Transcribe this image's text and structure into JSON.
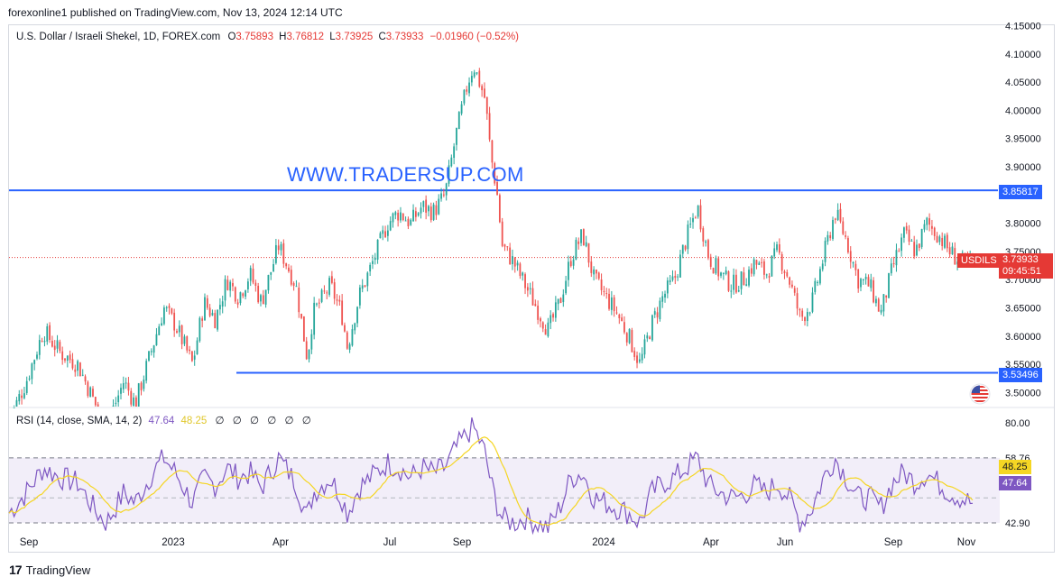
{
  "publisher": "forexonline1 published on TradingView.com, Nov 13, 2024 12:14 UTC",
  "header": {
    "symbol": "U.S. Dollar / Israeli Shekel, 1D, FOREX.com",
    "o_label": "O",
    "o": "3.75893",
    "h_label": "H",
    "h": "3.76812",
    "l_label": "L",
    "l": "3.73925",
    "c_label": "C",
    "c": "3.73933",
    "change": "−0.01960 (−0.52%)"
  },
  "watermark": "WWW.TRADERSUP.COM",
  "rsi_header": {
    "label": "RSI (14, close, SMA, 14, 2)",
    "rsi": "47.64",
    "sma": "48.25",
    "icons": [
      "∅",
      "∅",
      "∅",
      "∅",
      "∅",
      "∅"
    ]
  },
  "badges": {
    "resistance": "3.85817",
    "support": "3.53496",
    "symbol": "USDILS",
    "price": "3.73933",
    "countdown": "09:45:51",
    "rsi_sma": "48.25",
    "rsi": "47.64"
  },
  "footer": {
    "logo": "17",
    "brand": "TradingView"
  },
  "colors": {
    "up": "#26a69a",
    "down": "#ef5350",
    "level": "#2962ff",
    "rsi": "#7e57c2",
    "rsi_sma": "#f5d624"
  },
  "chart_data": {
    "type": "candlestick",
    "symbol": "USDILS",
    "timeframe": "1D",
    "x_ticks": [
      "Sep",
      "2023",
      "Apr",
      "Jul",
      "Sep",
      "2024",
      "Apr",
      "Jun",
      "Sep",
      "Nov"
    ],
    "y_ticks": [
      "4.15000",
      "4.10000",
      "4.05000",
      "4.00000",
      "3.95000",
      "3.90000",
      "3.85000",
      "3.80000",
      "3.75000",
      "3.70000",
      "3.65000",
      "3.60000",
      "3.55000",
      "3.50000"
    ],
    "ylim": [
      3.5,
      4.15
    ],
    "levels": {
      "resistance": 3.85817,
      "support": 3.53496,
      "last_price": 3.73933
    },
    "price_path": [
      [
        0,
        3.45
      ],
      [
        3,
        3.52
      ],
      [
        6,
        3.61
      ],
      [
        9,
        3.57
      ],
      [
        12,
        3.55
      ],
      [
        15,
        3.48
      ],
      [
        17,
        3.44
      ],
      [
        20,
        3.52
      ],
      [
        22,
        3.48
      ],
      [
        25,
        3.58
      ],
      [
        27,
        3.65
      ],
      [
        29,
        3.62
      ],
      [
        32,
        3.55
      ],
      [
        34,
        3.66
      ],
      [
        36,
        3.63
      ],
      [
        38,
        3.7
      ],
      [
        40,
        3.67
      ],
      [
        42,
        3.71
      ],
      [
        44,
        3.66
      ],
      [
        47,
        3.76
      ],
      [
        50,
        3.69
      ],
      [
        52,
        3.56
      ],
      [
        53,
        3.64
      ],
      [
        56,
        3.69
      ],
      [
        58,
        3.64
      ],
      [
        59,
        3.58
      ],
      [
        61,
        3.67
      ],
      [
        63,
        3.72
      ],
      [
        66,
        3.8
      ],
      [
        68,
        3.82
      ],
      [
        70,
        3.8
      ],
      [
        72,
        3.83
      ],
      [
        74,
        3.82
      ],
      [
        76,
        3.85
      ],
      [
        78,
        3.96
      ],
      [
        80,
        4.05
      ],
      [
        81,
        4.08
      ],
      [
        83,
        4.02
      ],
      [
        84,
        3.92
      ],
      [
        85,
        3.86
      ],
      [
        86,
        3.76
      ],
      [
        88,
        3.73
      ],
      [
        90,
        3.69
      ],
      [
        92,
        3.65
      ],
      [
        94,
        3.61
      ],
      [
        96,
        3.66
      ],
      [
        98,
        3.74
      ],
      [
        100,
        3.78
      ],
      [
        102,
        3.7
      ],
      [
        104,
        3.67
      ],
      [
        106,
        3.64
      ],
      [
        108,
        3.6
      ],
      [
        110,
        3.55
      ],
      [
        112,
        3.62
      ],
      [
        114,
        3.67
      ],
      [
        116,
        3.7
      ],
      [
        118,
        3.77
      ],
      [
        120,
        3.83
      ],
      [
        122,
        3.74
      ],
      [
        124,
        3.71
      ],
      [
        126,
        3.69
      ],
      [
        128,
        3.7
      ],
      [
        130,
        3.73
      ],
      [
        132,
        3.71
      ],
      [
        134,
        3.75
      ],
      [
        136,
        3.7
      ],
      [
        138,
        3.63
      ],
      [
        140,
        3.66
      ],
      [
        142,
        3.74
      ],
      [
        144,
        3.82
      ],
      [
        146,
        3.77
      ],
      [
        148,
        3.7
      ],
      [
        150,
        3.69
      ],
      [
        152,
        3.64
      ],
      [
        154,
        3.72
      ],
      [
        156,
        3.78
      ],
      [
        158,
        3.75
      ],
      [
        160,
        3.8
      ],
      [
        162,
        3.78
      ],
      [
        164,
        3.75
      ],
      [
        166,
        3.73
      ],
      [
        168,
        3.73
      ]
    ],
    "rsi": {
      "name": "RSI",
      "sma_name": "SMA",
      "ylim": [
        30,
        90
      ],
      "y_ticks": [
        "80.00",
        "58.76",
        "42.90"
      ],
      "band": [
        40,
        66
      ],
      "mid": 50,
      "values": [
        [
          0,
          44
        ],
        [
          3,
          52
        ],
        [
          6,
          62
        ],
        [
          9,
          58
        ],
        [
          12,
          56
        ],
        [
          15,
          45
        ],
        [
          17,
          40
        ],
        [
          20,
          52
        ],
        [
          22,
          48
        ],
        [
          25,
          60
        ],
        [
          27,
          66
        ],
        [
          29,
          60
        ],
        [
          32,
          48
        ],
        [
          34,
          58
        ],
        [
          36,
          55
        ],
        [
          38,
          62
        ],
        [
          40,
          58
        ],
        [
          42,
          60
        ],
        [
          44,
          54
        ],
        [
          47,
          66
        ],
        [
          50,
          56
        ],
        [
          52,
          42
        ],
        [
          53,
          52
        ],
        [
          56,
          58
        ],
        [
          58,
          50
        ],
        [
          59,
          44
        ],
        [
          61,
          54
        ],
        [
          63,
          58
        ],
        [
          66,
          64
        ],
        [
          68,
          62
        ],
        [
          70,
          58
        ],
        [
          72,
          62
        ],
        [
          74,
          60
        ],
        [
          76,
          62
        ],
        [
          78,
          70
        ],
        [
          80,
          76
        ],
        [
          81,
          78
        ],
        [
          83,
          68
        ],
        [
          84,
          56
        ],
        [
          85,
          48
        ],
        [
          86,
          42
        ],
        [
          88,
          40
        ],
        [
          90,
          42
        ],
        [
          92,
          40
        ],
        [
          94,
          38
        ],
        [
          96,
          46
        ],
        [
          98,
          58
        ],
        [
          100,
          60
        ],
        [
          102,
          50
        ],
        [
          104,
          48
        ],
        [
          106,
          46
        ],
        [
          108,
          44
        ],
        [
          110,
          40
        ],
        [
          112,
          52
        ],
        [
          114,
          56
        ],
        [
          116,
          58
        ],
        [
          118,
          62
        ],
        [
          120,
          66
        ],
        [
          122,
          55
        ],
        [
          124,
          52
        ],
        [
          126,
          50
        ],
        [
          128,
          51
        ],
        [
          130,
          55
        ],
        [
          132,
          52
        ],
        [
          134,
          56
        ],
        [
          136,
          50
        ],
        [
          138,
          40
        ],
        [
          140,
          46
        ],
        [
          142,
          58
        ],
        [
          144,
          66
        ],
        [
          146,
          58
        ],
        [
          148,
          50
        ],
        [
          150,
          50
        ],
        [
          152,
          46
        ],
        [
          154,
          56
        ],
        [
          156,
          60
        ],
        [
          158,
          56
        ],
        [
          160,
          60
        ],
        [
          162,
          56
        ],
        [
          164,
          52
        ],
        [
          166,
          50
        ],
        [
          168,
          47.64
        ]
      ]
    }
  }
}
